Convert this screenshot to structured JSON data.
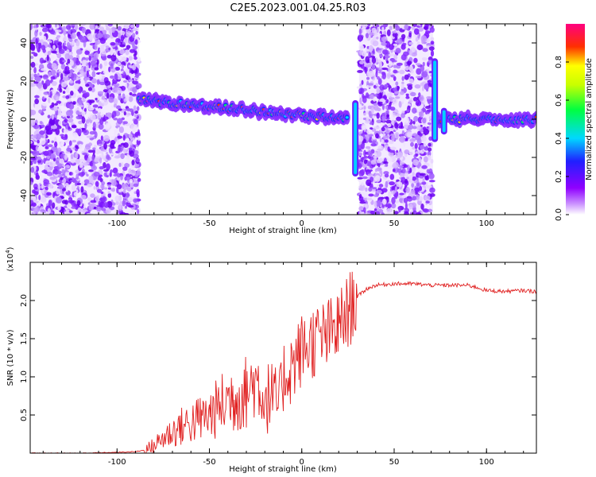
{
  "title": "C2E5.2023.001.04.25.R03",
  "chart_data": [
    {
      "type": "heatmap",
      "xlabel": "Height of straight line (km)",
      "ylabel": "Frequency (Hz)",
      "xlim": [
        -147,
        127
      ],
      "ylim": [
        -50,
        50
      ],
      "xticks": [
        -100,
        -50,
        0,
        50,
        100
      ],
      "xtick_labels": [
        "-100",
        "-50",
        "0",
        "50",
        "100"
      ],
      "yticks": [
        -40,
        -20,
        0,
        20,
        40
      ],
      "ytick_labels": [
        "-40",
        "-20",
        "0",
        "20",
        "40"
      ],
      "colorbar": {
        "label": "Normalized spectral amplitude",
        "range": [
          0,
          1
        ],
        "ticks": [
          0.0,
          0.2,
          0.4,
          0.6,
          0.8
        ],
        "tick_labels": [
          "0.0",
          "0.2",
          "0.4",
          "0.6",
          "0.8"
        ],
        "colors": [
          "#ffffff",
          "#b000ff",
          "#2020ff",
          "#00e0ff",
          "#00ff40",
          "#ffff00",
          "#ff2000",
          "#ff0080"
        ]
      },
      "regions": [
        {
          "kind": "noise",
          "x": [
            -147,
            -88
          ],
          "freq": [
            -50,
            50
          ]
        },
        {
          "kind": "signal",
          "x": [
            -88,
            25
          ],
          "freq_center": [
            10,
            0
          ]
        },
        {
          "kind": "noise",
          "x": [
            31,
            71
          ],
          "freq": [
            -50,
            50
          ]
        },
        {
          "kind": "signal",
          "x": [
            72,
            127
          ],
          "freq_center": [
            0,
            0
          ]
        }
      ],
      "features": [
        {
          "x": 29,
          "freq": [
            -30,
            10
          ]
        },
        {
          "x": 72,
          "freq": [
            -12,
            32
          ]
        },
        {
          "x": 77,
          "freq": [
            -8,
            6
          ]
        }
      ]
    },
    {
      "type": "line",
      "xlabel": "Height of straight line (km)",
      "ylabel": "SNR (10 * v/v)",
      "scale_label": "(x10",
      "scale_exp": "4",
      "scale_close": ")",
      "xlim": [
        -147,
        127
      ],
      "ylim": [
        0,
        2.5
      ],
      "xticks": [
        -100,
        -50,
        0,
        50,
        100
      ],
      "xtick_labels": [
        "-100",
        "-50",
        "0",
        "50",
        "100"
      ],
      "yticks": [
        0.5,
        1.0,
        1.5,
        2.0
      ],
      "ytick_labels": [
        "0.5",
        "1.0",
        "1.5",
        "2.0"
      ],
      "color": "#e02020",
      "series": [
        {
          "x": [
            -147,
            -120,
            -100,
            -90,
            -85,
            -80,
            -75,
            -70,
            -65,
            -60,
            -55,
            -50,
            -45,
            -40,
            -35,
            -30,
            -27,
            -25,
            -22,
            -20,
            -17,
            -15,
            -12,
            -10,
            -5,
            0,
            5,
            10,
            15,
            20,
            25,
            30,
            35,
            40,
            50,
            60,
            70,
            80,
            90,
            95,
            100,
            110,
            120,
            127
          ],
          "y": [
            0.0,
            0.0,
            0.01,
            0.02,
            0.04,
            0.1,
            0.2,
            0.28,
            0.35,
            0.4,
            0.45,
            0.5,
            0.6,
            0.7,
            0.75,
            0.8,
            0.9,
            0.95,
            0.85,
            0.7,
            0.75,
            0.7,
            0.65,
            1.0,
            1.15,
            1.35,
            1.45,
            1.5,
            1.55,
            1.65,
            1.85,
            2.05,
            2.15,
            2.2,
            2.22,
            2.22,
            2.2,
            2.2,
            2.2,
            2.17,
            2.13,
            2.12,
            2.13,
            2.12
          ]
        }
      ]
    }
  ]
}
